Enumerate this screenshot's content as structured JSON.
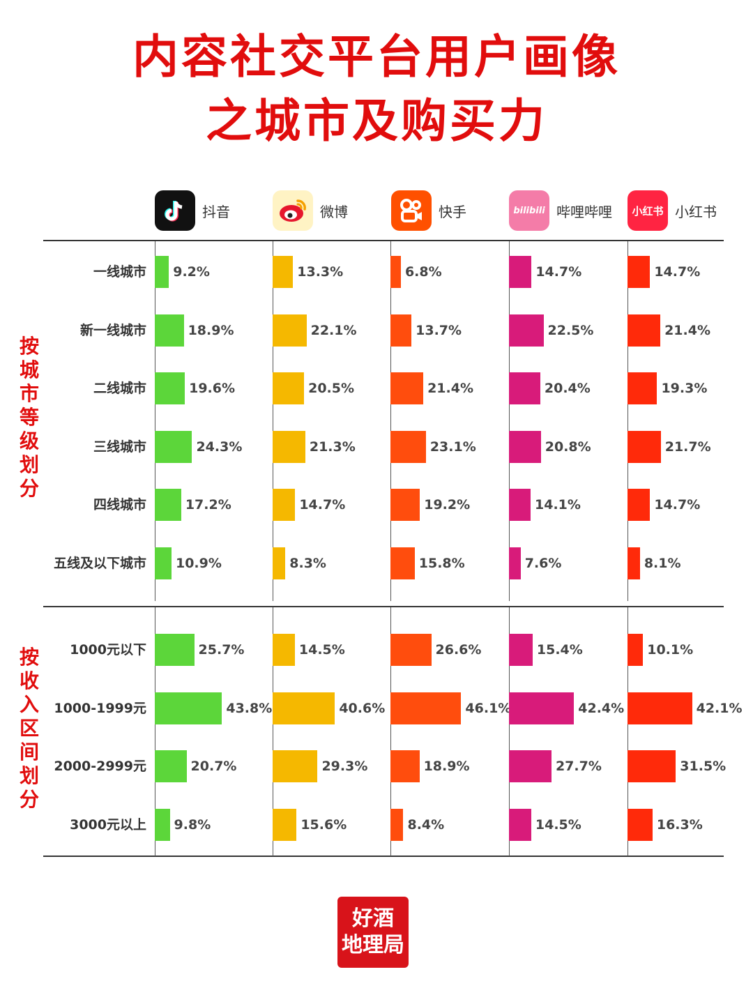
{
  "title": {
    "line1": "内容社交平台用户画像",
    "line2": "之城市及购买力"
  },
  "platforms": [
    {
      "name": "抖音",
      "icon": "douyin-icon",
      "color": "#5cd63a"
    },
    {
      "name": "微博",
      "icon": "weibo-icon",
      "color": "#f5b800"
    },
    {
      "name": "快手",
      "icon": "kuaishou-icon",
      "color": "#ff4d0d"
    },
    {
      "name": "哔哩哔哩",
      "icon": "bilibili-icon",
      "color": "#d81b7a"
    },
    {
      "name": "小红书",
      "icon": "xiaohongshu-icon",
      "color": "#ff2a0a"
    }
  ],
  "icon_text": {
    "bilibili": "bilibili",
    "xiaohongshu": "小红书"
  },
  "sections": {
    "city": "按城市等级划分",
    "income": "按收入区间划分"
  },
  "chart_data": [
    {
      "type": "bar",
      "title": "按城市等级划分",
      "categories": [
        "一线城市",
        "新一线城市",
        "二线城市",
        "三线城市",
        "四线城市",
        "五线及以下城市"
      ],
      "series": [
        {
          "name": "抖音",
          "values": [
            9.2,
            18.9,
            19.6,
            24.3,
            17.2,
            10.9
          ]
        },
        {
          "name": "微博",
          "values": [
            13.3,
            22.1,
            20.5,
            21.3,
            14.7,
            8.3
          ]
        },
        {
          "name": "快手",
          "values": [
            6.8,
            13.7,
            21.4,
            23.1,
            19.2,
            15.8
          ]
        },
        {
          "name": "哔哩哔哩",
          "values": [
            14.7,
            22.5,
            20.4,
            20.8,
            14.1,
            7.6
          ]
        },
        {
          "name": "小红书",
          "values": [
            14.7,
            21.4,
            19.3,
            21.7,
            14.7,
            8.1
          ]
        }
      ],
      "unit": "%"
    },
    {
      "type": "bar",
      "title": "按收入区间划分",
      "categories": [
        "1000元以下",
        "1000-1999元",
        "2000-2999元",
        "3000元以上"
      ],
      "series": [
        {
          "name": "抖音",
          "values": [
            25.7,
            43.8,
            20.7,
            9.8
          ]
        },
        {
          "name": "微博",
          "values": [
            14.5,
            40.6,
            29.3,
            15.6
          ]
        },
        {
          "name": "快手",
          "values": [
            26.6,
            46.1,
            18.9,
            8.4
          ]
        },
        {
          "name": "哔哩哔哩",
          "values": [
            15.4,
            42.4,
            27.7,
            14.5
          ]
        },
        {
          "name": "小红书",
          "values": [
            10.1,
            42.1,
            31.5,
            16.3
          ]
        }
      ],
      "unit": "%"
    }
  ],
  "logo": {
    "line1": "好酒",
    "line2": "地理局"
  }
}
